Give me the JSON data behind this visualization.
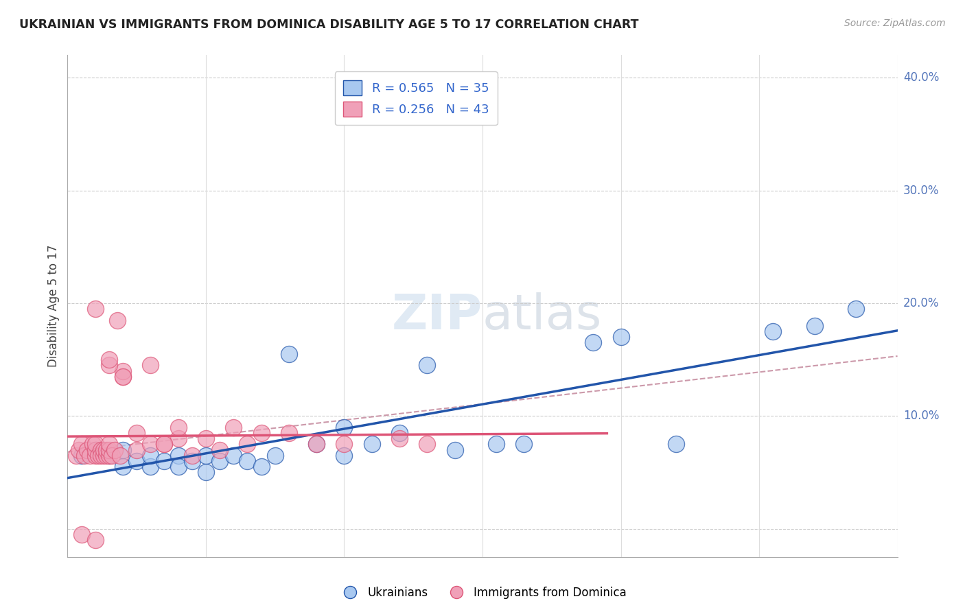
{
  "title": "UKRAINIAN VS IMMIGRANTS FROM DOMINICA DISABILITY AGE 5 TO 17 CORRELATION CHART",
  "source": "Source: ZipAtlas.com",
  "ylabel": "Disability Age 5 to 17",
  "xmin": 0.0,
  "xmax": 0.3,
  "ymin": -0.025,
  "ymax": 0.42,
  "blue_R": 0.565,
  "blue_N": 35,
  "pink_R": 0.256,
  "pink_N": 43,
  "blue_scatter_color": "#A8C8F0",
  "pink_scatter_color": "#F0A0B8",
  "blue_line_color": "#2255AA",
  "pink_line_color": "#DD5577",
  "dashed_line_color": "#CC99AA",
  "grid_color": "#DDDDDD",
  "grid_dash_color": "#CCCCCC",
  "title_color": "#222222",
  "axis_label_color": "#5577BB",
  "legend_R_color": "#3366CC",
  "watermark_color": "#DDEEFF",
  "blue_scatter_x": [
    0.005,
    0.01,
    0.015,
    0.02,
    0.02,
    0.025,
    0.03,
    0.03,
    0.035,
    0.04,
    0.04,
    0.045,
    0.05,
    0.05,
    0.055,
    0.06,
    0.065,
    0.07,
    0.075,
    0.08,
    0.09,
    0.1,
    0.1,
    0.11,
    0.12,
    0.13,
    0.14,
    0.155,
    0.165,
    0.19,
    0.2,
    0.22,
    0.255,
    0.27,
    0.285
  ],
  "blue_scatter_y": [
    0.065,
    0.07,
    0.065,
    0.055,
    0.07,
    0.06,
    0.055,
    0.065,
    0.06,
    0.065,
    0.055,
    0.06,
    0.05,
    0.065,
    0.06,
    0.065,
    0.06,
    0.055,
    0.065,
    0.155,
    0.075,
    0.09,
    0.065,
    0.075,
    0.085,
    0.145,
    0.07,
    0.075,
    0.075,
    0.165,
    0.17,
    0.075,
    0.175,
    0.18,
    0.195
  ],
  "pink_scatter_x": [
    0.003,
    0.004,
    0.005,
    0.006,
    0.007,
    0.008,
    0.009,
    0.01,
    0.01,
    0.01,
    0.011,
    0.012,
    0.012,
    0.013,
    0.013,
    0.014,
    0.014,
    0.015,
    0.015,
    0.015,
    0.016,
    0.017,
    0.018,
    0.019,
    0.02,
    0.02,
    0.025,
    0.025,
    0.03,
    0.035,
    0.04,
    0.04,
    0.045,
    0.05,
    0.055,
    0.06,
    0.065,
    0.07,
    0.08,
    0.09,
    0.1,
    0.12,
    0.13
  ],
  "pink_scatter_y": [
    0.065,
    0.07,
    0.075,
    0.065,
    0.07,
    0.065,
    0.075,
    0.065,
    0.07,
    0.075,
    0.065,
    0.07,
    0.065,
    0.065,
    0.07,
    0.065,
    0.07,
    0.065,
    0.07,
    0.075,
    0.065,
    0.07,
    0.185,
    0.065,
    0.135,
    0.14,
    0.07,
    0.085,
    0.075,
    0.075,
    0.08,
    0.09,
    0.065,
    0.08,
    0.07,
    0.09,
    0.075,
    0.085,
    0.085,
    0.075,
    0.075,
    0.08,
    0.075
  ],
  "pink_extra_x": [
    0.005,
    0.01,
    0.01,
    0.015,
    0.015,
    0.02,
    0.03,
    0.035
  ],
  "pink_extra_y": [
    -0.005,
    -0.01,
    0.195,
    0.145,
    0.15,
    0.135,
    0.145,
    0.075
  ],
  "y_tick_values": [
    0.0,
    0.1,
    0.2,
    0.3,
    0.4
  ],
  "y_tick_labels": [
    "",
    "10.0%",
    "20.0%",
    "30.0%",
    "40.0%"
  ],
  "x_tick_values": [
    0.0,
    0.05,
    0.1,
    0.15,
    0.2,
    0.25,
    0.3
  ]
}
